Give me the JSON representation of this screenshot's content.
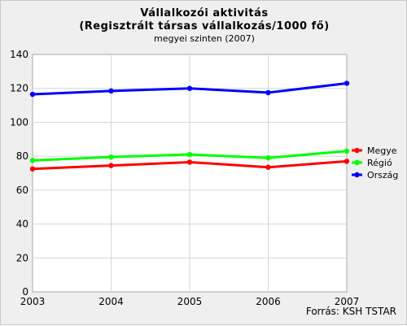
{
  "chart_data": {
    "type": "line",
    "title": "Vállalkozói aktivitás",
    "title_line2": "(Regisztrált társas vállalkozás/1000 fő)",
    "subtitle": "megyei szinten (2007)",
    "source": "Forrás: KSH TSTAR",
    "x": [
      "2003",
      "2004",
      "2005",
      "2006",
      "2007"
    ],
    "ylim": [
      0,
      140
    ],
    "yticks": [
      0,
      20,
      40,
      60,
      80,
      100,
      120,
      140
    ],
    "grid": true,
    "legend_position": "right",
    "series": [
      {
        "name": "Megye",
        "color": "#ff0000",
        "values": [
          72.5,
          74.5,
          76.5,
          73.5,
          77
        ]
      },
      {
        "name": "Régió",
        "color": "#00ff00",
        "values": [
          77.5,
          79.5,
          81,
          79,
          83
        ]
      },
      {
        "name": "Ország",
        "color": "#0000ff",
        "values": [
          116.5,
          118.5,
          120,
          117.5,
          123
        ]
      }
    ]
  }
}
